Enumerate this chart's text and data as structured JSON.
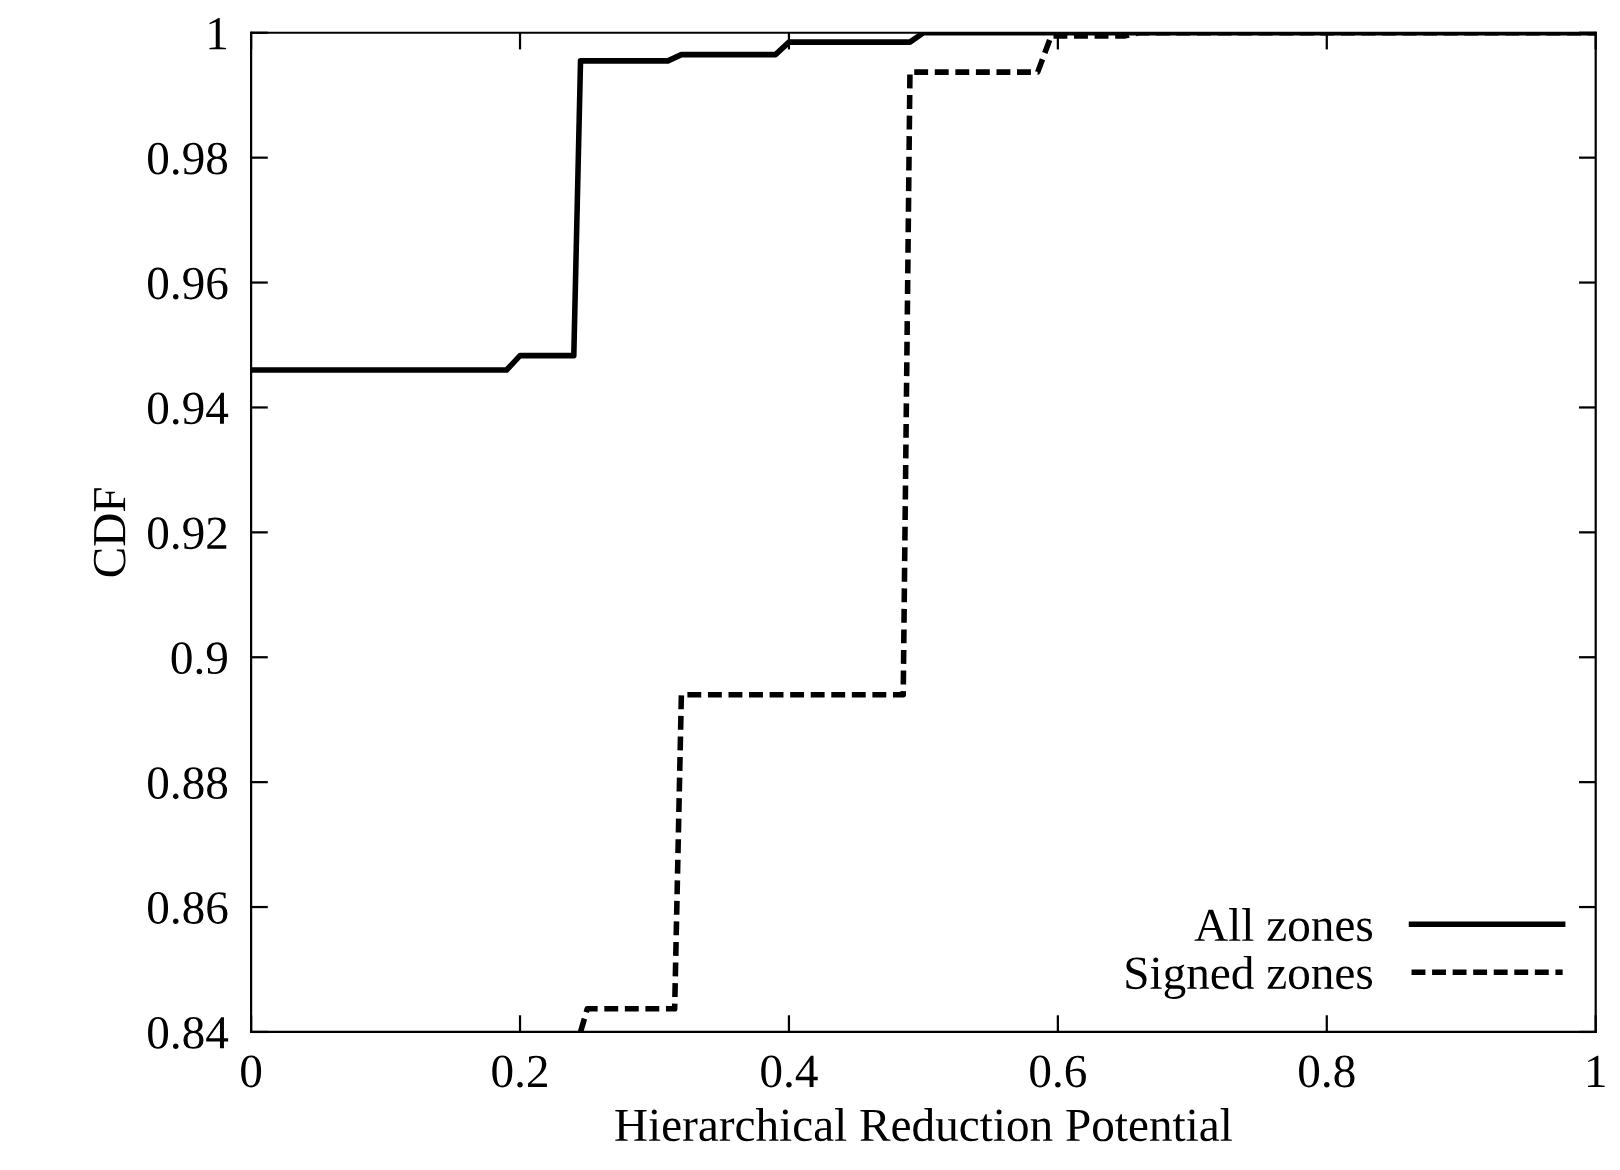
{
  "chart_data": {
    "type": "line",
    "xlabel": "Hierarchical Reduction Potential",
    "ylabel": "CDF",
    "xlim": [
      0,
      1
    ],
    "ylim": [
      0.84,
      1
    ],
    "xticks": [
      0,
      0.2,
      0.4,
      0.6,
      0.8,
      1
    ],
    "yticks": [
      0.84,
      0.86,
      0.88,
      0.9,
      0.92,
      0.94,
      0.96,
      0.98,
      1
    ],
    "legend": "bottom right",
    "grid": false,
    "marker": "none",
    "series": [
      {
        "name": "All zones",
        "color": "#000000",
        "line_style": "solid",
        "x": [
          0,
          0.15,
          0.19,
          0.2,
          0.235,
          0.24,
          0.245,
          0.31,
          0.32,
          0.39,
          0.4,
          0.49,
          0.5,
          1
        ],
        "values": [
          0.946,
          0.946,
          0.946,
          0.9483,
          0.9483,
          0.9483,
          0.9955,
          0.9955,
          0.9965,
          0.9965,
          0.9985,
          0.9985,
          1,
          1
        ]
      },
      {
        "name": "Signed zones",
        "color": "#000000",
        "line_style": "dashed",
        "x": [
          0.245,
          0.25,
          0.315,
          0.32,
          0.485,
          0.49,
          0.585,
          0.595,
          0.65,
          0.66,
          1
        ],
        "values": [
          0.84,
          0.8437,
          0.8437,
          0.894,
          0.894,
          0.9937,
          0.9937,
          0.9995,
          0.9995,
          1,
          1
        ]
      }
    ]
  }
}
